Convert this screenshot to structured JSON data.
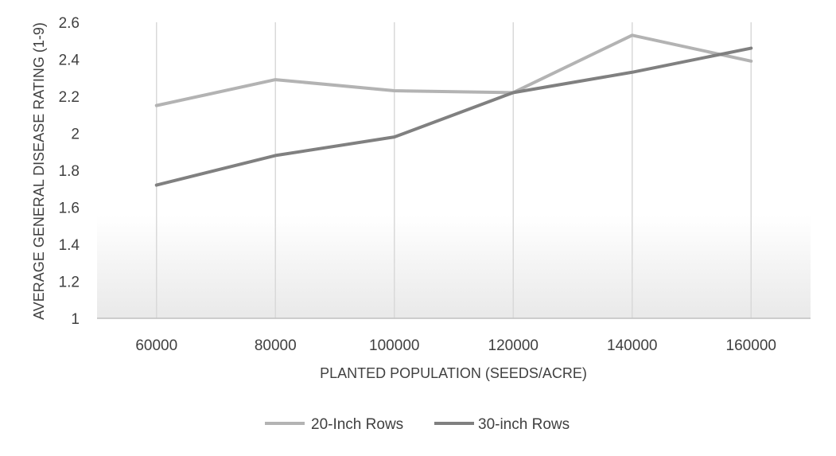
{
  "chart_data": {
    "type": "line",
    "title": "",
    "xlabel": "PLANTED POPULATION (SEEDS/ACRE)",
    "ylabel": "AVERAGE GENERAL DISEASE RATING (1-9)",
    "categories": [
      "60000",
      "80000",
      "100000",
      "120000",
      "140000",
      "160000"
    ],
    "ylim": [
      1,
      2.6
    ],
    "yticks": [
      1,
      1.2,
      1.4,
      1.6,
      1.8,
      2,
      2.2,
      2.4,
      2.6
    ],
    "ytick_labels": [
      "1",
      "1.2",
      "1.4",
      "1.6",
      "1.8",
      "2",
      "2.2",
      "2.4",
      "2.6"
    ],
    "grid": "vertical",
    "legend": "bottom",
    "series": [
      {
        "name": "20-Inch Rows",
        "color": "#b3b3b3",
        "values": [
          2.15,
          2.29,
          2.23,
          2.22,
          2.53,
          2.39
        ]
      },
      {
        "name": "30-inch Rows",
        "color": "#808080",
        "values": [
          1.72,
          1.88,
          1.98,
          2.22,
          2.33,
          2.46
        ]
      }
    ]
  }
}
